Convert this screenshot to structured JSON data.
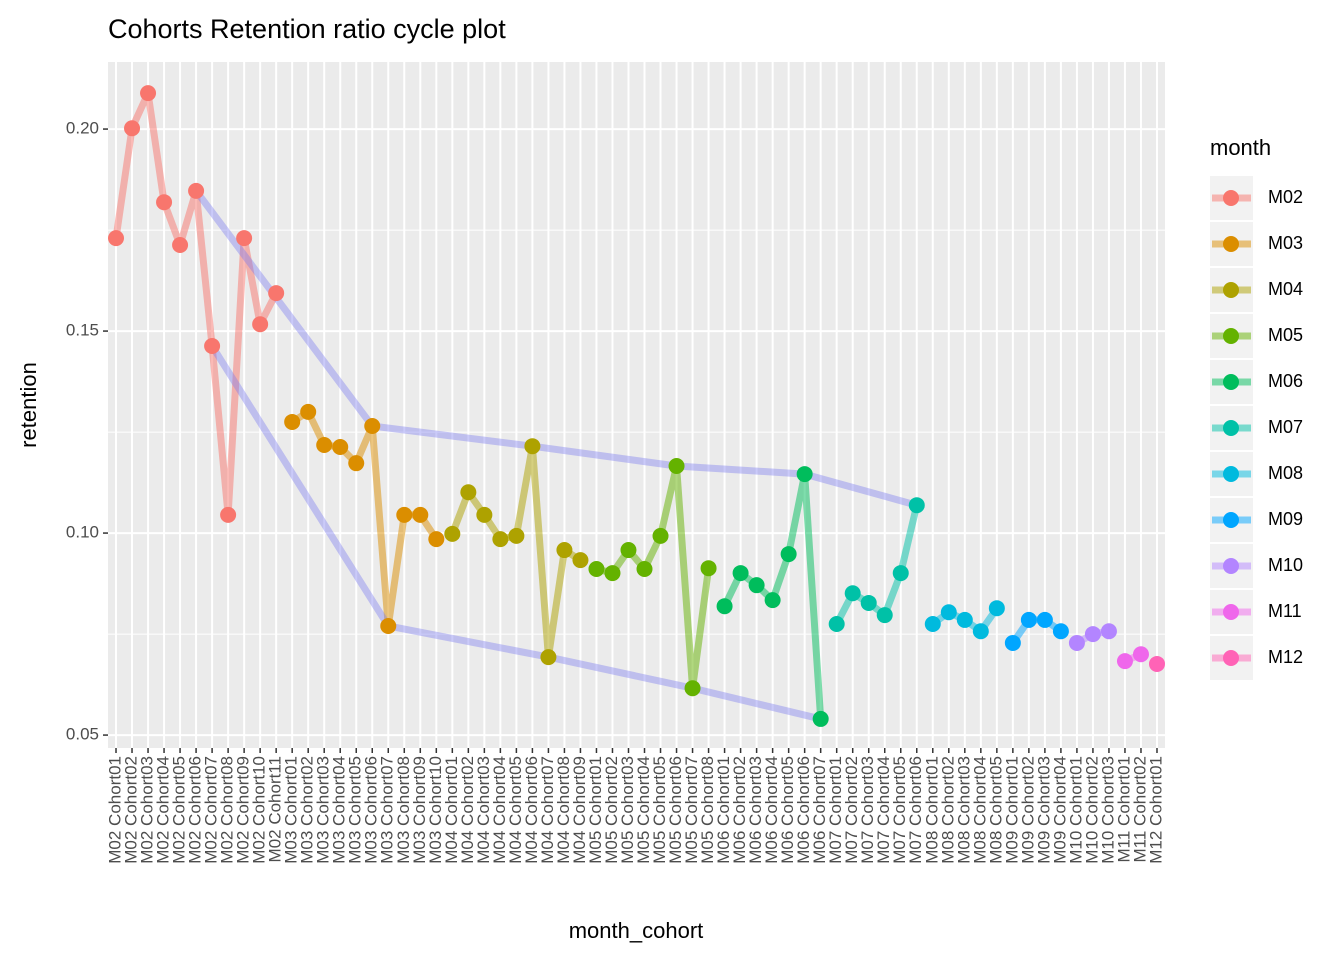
{
  "chart_data": {
    "type": "line",
    "title": "Cohorts Retention ratio cycle plot",
    "x_label": "month_cohort",
    "y_label": "retention",
    "legend_title": "month",
    "legend": "right",
    "grid": true,
    "ylim": [
      0.0468,
      0.2166
    ],
    "yticks": [
      {
        "value": 0.05,
        "label": "0.05"
      },
      {
        "value": 0.1,
        "label": "0.10"
      },
      {
        "value": 0.15,
        "label": "0.15"
      },
      {
        "value": 0.2,
        "label": "0.20"
      }
    ],
    "highlight": {
      "color": "#7b7bf0",
      "points": [
        5,
        6
      ]
    },
    "series": [
      {
        "name": "M02",
        "color": "#F8766D",
        "categories": [
          "M02 Cohort01",
          "M02 Cohort02",
          "M02 Cohort03",
          "M02 Cohort04",
          "M02 Cohort05",
          "M02 Cohort06",
          "M02 Cohort07",
          "M02 Cohort08",
          "M02 Cohort09",
          "M02 Cohort10",
          "M02 Cohort11"
        ],
        "values": [
          0.173,
          0.2002,
          0.2089,
          0.1819,
          0.1713,
          0.1847,
          0.1463,
          0.1045,
          0.173,
          0.1517,
          0.1594
        ]
      },
      {
        "name": "M03",
        "color": "#DB8E00",
        "categories": [
          "M03 Cohort01",
          "M03 Cohort02",
          "M03 Cohort03",
          "M03 Cohort04",
          "M03 Cohort05",
          "M03 Cohort06",
          "M03 Cohort07",
          "M03 Cohort08",
          "M03 Cohort09",
          "M03 Cohort10"
        ],
        "values": [
          0.1275,
          0.13,
          0.1218,
          0.1213,
          0.1173,
          0.1265,
          0.077,
          0.1045,
          0.1045,
          0.0985
        ]
      },
      {
        "name": "M04",
        "color": "#AEA200",
        "categories": [
          "M04 Cohort01",
          "M04 Cohort02",
          "M04 Cohort03",
          "M04 Cohort04",
          "M04 Cohort05",
          "M04 Cohort06",
          "M04 Cohort07",
          "M04 Cohort08",
          "M04 Cohort09"
        ],
        "values": [
          0.0998,
          0.1101,
          0.1045,
          0.0985,
          0.0993,
          0.1215,
          0.0693,
          0.0958,
          0.0933
        ]
      },
      {
        "name": "M05",
        "color": "#64B200",
        "categories": [
          "M05 Cohort01",
          "M05 Cohort02",
          "M05 Cohort03",
          "M05 Cohort04",
          "M05 Cohort05",
          "M05 Cohort06",
          "M05 Cohort07",
          "M05 Cohort08"
        ],
        "values": [
          0.0911,
          0.0901,
          0.0958,
          0.0911,
          0.0993,
          0.1166,
          0.0616,
          0.0913
        ]
      },
      {
        "name": "M06",
        "color": "#00BD5C",
        "categories": [
          "M06 Cohort01",
          "M06 Cohort02",
          "M06 Cohort03",
          "M06 Cohort04",
          "M06 Cohort05",
          "M06 Cohort06",
          "M06 Cohort07"
        ],
        "values": [
          0.0819,
          0.0901,
          0.0871,
          0.0834,
          0.0948,
          0.1146,
          0.054
        ]
      },
      {
        "name": "M07",
        "color": "#00C1A7",
        "categories": [
          "M07 Cohort01",
          "M07 Cohort02",
          "M07 Cohort03",
          "M07 Cohort04",
          "M07 Cohort05",
          "M07 Cohort06"
        ],
        "values": [
          0.0775,
          0.0851,
          0.0827,
          0.0797,
          0.0901,
          0.1069
        ]
      },
      {
        "name": "M08",
        "color": "#00BADE",
        "categories": [
          "M08 Cohort01",
          "M08 Cohort02",
          "M08 Cohort03",
          "M08 Cohort04",
          "M08 Cohort05"
        ],
        "values": [
          0.0775,
          0.0804,
          0.0785,
          0.0757,
          0.0814
        ]
      },
      {
        "name": "M09",
        "color": "#00A6FF",
        "categories": [
          "M09 Cohort01",
          "M09 Cohort02",
          "M09 Cohort03",
          "M09 Cohort04"
        ],
        "values": [
          0.0728,
          0.0785,
          0.0785,
          0.0757
        ]
      },
      {
        "name": "M10",
        "color": "#B385FF",
        "categories": [
          "M10 Cohort01",
          "M10 Cohort02",
          "M10 Cohort03"
        ],
        "values": [
          0.0728,
          0.075,
          0.0757
        ]
      },
      {
        "name": "M11",
        "color": "#EF67EB",
        "categories": [
          "M11 Cohort01",
          "M11 Cohort02"
        ],
        "values": [
          0.0683,
          0.07
        ]
      },
      {
        "name": "M12",
        "color": "#FF63B6",
        "categories": [
          "M12 Cohort01"
        ],
        "values": [
          0.0676
        ]
      }
    ]
  }
}
